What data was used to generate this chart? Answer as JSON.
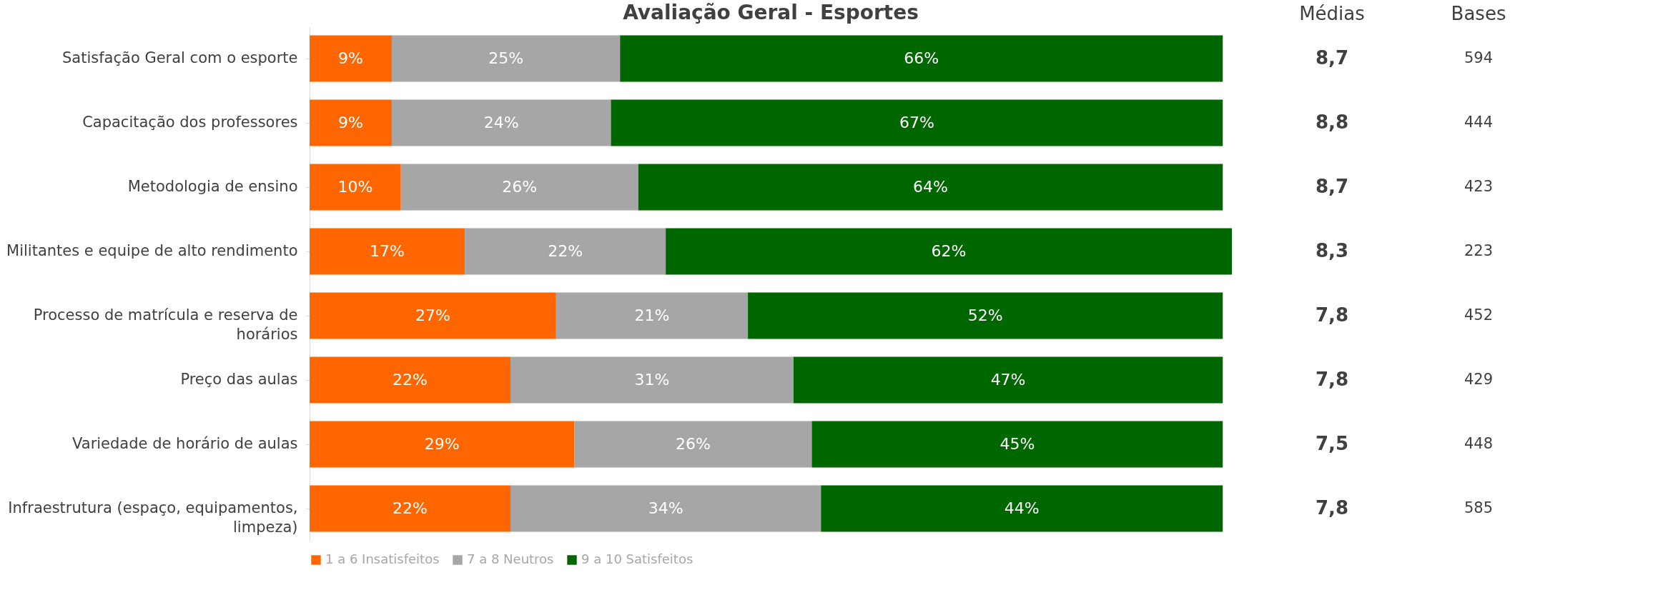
{
  "chart_data": [
    {
      "type": "bar",
      "title": "Avaliação Geral - Esportes",
      "orientation": "horizontal",
      "stacked": true,
      "legend": "bottom",
      "categories": [
        "Satisfação Geral com o esporte",
        "Capacitação dos professores",
        "Metodologia de ensino",
        "Militantes e equipe de alto rendimento",
        "Processo de matrícula e reserva de horários",
        "Preço das aulas",
        "Variedade de horário de aulas",
        "Infraestrutura (espaço, equipamentos, limpeza)"
      ],
      "series": [
        {
          "name": "1 a 6 Insatisfeitos",
          "color": "#ff6600",
          "values": [
            9,
            9,
            10,
            17,
            27,
            22,
            29,
            22
          ],
          "value_labels": [
            "9%",
            "9%",
            "10%",
            "17%",
            "27%",
            "22%",
            "29%",
            "22%"
          ]
        },
        {
          "name": "7 a 8 Neutros",
          "color": "#a6a6a6",
          "values": [
            25,
            24,
            26,
            22,
            21,
            31,
            26,
            34
          ],
          "value_labels": [
            "25%",
            "24%",
            "26%",
            "22%",
            "21%",
            "31%",
            "26%",
            "34%"
          ]
        },
        {
          "name": "9 a 10 Satisfeitos",
          "color": "#006600",
          "values": [
            66,
            67,
            64,
            62,
            52,
            47,
            45,
            44
          ],
          "value_labels": [
            "66%",
            "67%",
            "64%",
            "62%",
            "52%",
            "47%",
            "45%",
            "44%"
          ]
        }
      ]
    },
    {
      "type": "other",
      "title": "Médias",
      "values": [
        8.7,
        8.8,
        8.7,
        8.3,
        7.8,
        7.8,
        7.5,
        7.8
      ],
      "value_labels": [
        "8,7",
        "8,8",
        "8,7",
        "8,3",
        "7,8",
        "7,8",
        "7,5",
        "7,8"
      ]
    },
    {
      "type": "other",
      "title": "Bases",
      "values": [
        594,
        444,
        423,
        223,
        452,
        429,
        448,
        585
      ],
      "data_labels": true
    }
  ]
}
